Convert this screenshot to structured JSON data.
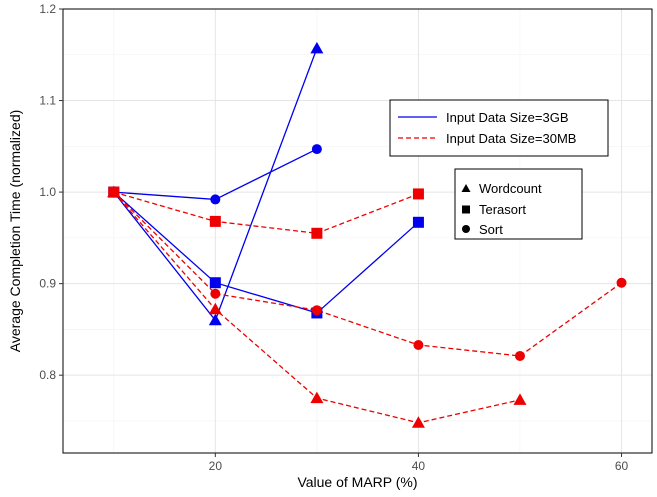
{
  "chart_data": {
    "type": "line",
    "title": "",
    "xlabel": "Value of MARP (%)",
    "ylabel": "Average Completion Time (normalized)",
    "xlim": [
      5,
      63
    ],
    "ylim": [
      0.715,
      1.2
    ],
    "xticks": [
      20,
      40,
      60
    ],
    "yticks": [
      0.8,
      0.9,
      1.0,
      1.1,
      1.2
    ],
    "ytick_labels": [
      "0.8",
      "0.9",
      "1.0",
      "1.1",
      "1.2"
    ],
    "grid": true,
    "legend_size": {
      "position": "right-upper",
      "entries": [
        {
          "label": "Input Data Size=3GB",
          "color": "#0000ee",
          "dash": "solid"
        },
        {
          "label": "Input Data Size=30MB",
          "color": "#ee0000",
          "dash": "dashed"
        }
      ]
    },
    "legend_workload": {
      "position": "right-middle",
      "entries": [
        {
          "label": "Wordcount",
          "marker": "triangle"
        },
        {
          "label": "Terasort",
          "marker": "square"
        },
        {
          "label": "Sort",
          "marker": "circle"
        }
      ]
    },
    "series": [
      {
        "size": "3GB",
        "workload": "Wordcount",
        "color": "#0000ee",
        "dash": "solid",
        "marker": "triangle",
        "x": [
          10,
          20,
          30
        ],
        "y": [
          1.0,
          0.86,
          1.157
        ]
      },
      {
        "size": "3GB",
        "workload": "Terasort",
        "color": "#0000ee",
        "dash": "solid",
        "marker": "square",
        "x": [
          10,
          20,
          30,
          40
        ],
        "y": [
          1.0,
          0.901,
          0.868,
          0.967
        ]
      },
      {
        "size": "3GB",
        "workload": "Sort",
        "color": "#0000ee",
        "dash": "solid",
        "marker": "circle",
        "x": [
          10,
          20,
          30
        ],
        "y": [
          1.0,
          0.992,
          1.047
        ]
      },
      {
        "size": "30MB",
        "workload": "Wordcount",
        "color": "#ee0000",
        "dash": "dashed",
        "marker": "triangle",
        "x": [
          10,
          20,
          30,
          40,
          50
        ],
        "y": [
          1.0,
          0.872,
          0.775,
          0.748,
          0.773
        ]
      },
      {
        "size": "30MB",
        "workload": "Terasort",
        "color": "#ee0000",
        "dash": "dashed",
        "marker": "square",
        "x": [
          10,
          20,
          30,
          40
        ],
        "y": [
          1.0,
          0.968,
          0.955,
          0.998
        ]
      },
      {
        "size": "30MB",
        "workload": "Sort",
        "color": "#ee0000",
        "dash": "dashed",
        "marker": "circle",
        "x": [
          10,
          20,
          30,
          40,
          50,
          60
        ],
        "y": [
          1.0,
          0.889,
          0.871,
          0.833,
          0.821,
          0.901
        ]
      }
    ]
  }
}
